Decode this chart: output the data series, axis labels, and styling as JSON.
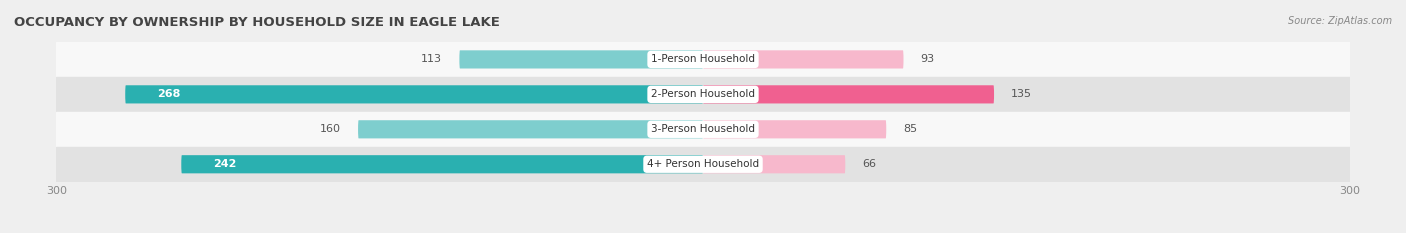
{
  "title": "OCCUPANCY BY OWNERSHIP BY HOUSEHOLD SIZE IN EAGLE LAKE",
  "source": "Source: ZipAtlas.com",
  "categories": [
    "1-Person Household",
    "2-Person Household",
    "3-Person Household",
    "4+ Person Household"
  ],
  "owner_values": [
    113,
    268,
    160,
    242
  ],
  "renter_values": [
    93,
    135,
    85,
    66
  ],
  "owner_color_light": "#7ecece",
  "owner_color_dark": "#2ab0b0",
  "renter_color_light": "#f7b8cc",
  "renter_color_dark": "#f06090",
  "axis_limit": 300,
  "bar_height": 0.52,
  "bg_color": "#efefef",
  "row_bg_light": "#f8f8f8",
  "row_bg_dark": "#e2e2e2",
  "title_fontsize": 9.5,
  "source_fontsize": 7,
  "tick_fontsize": 8,
  "bar_label_fontsize": 8,
  "category_fontsize": 7.5,
  "legend_fontsize": 8
}
